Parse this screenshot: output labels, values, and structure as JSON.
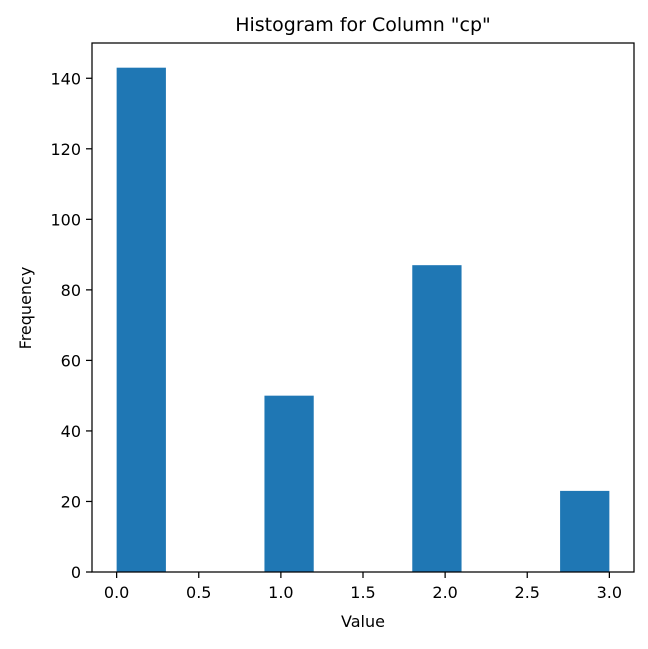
{
  "chart_data": {
    "type": "bar",
    "title": "Histogram for Column \"cp\"",
    "xlabel": "Value",
    "ylabel": "Frequency",
    "bins": [
      {
        "x0": 0.0,
        "x1": 0.3,
        "value": 143
      },
      {
        "x0": 0.3,
        "x1": 0.6,
        "value": 0
      },
      {
        "x0": 0.6,
        "x1": 0.9,
        "value": 0
      },
      {
        "x0": 0.9,
        "x1": 1.2,
        "value": 50
      },
      {
        "x0": 1.2,
        "x1": 1.5,
        "value": 0
      },
      {
        "x0": 1.5,
        "x1": 1.8,
        "value": 0
      },
      {
        "x0": 1.8,
        "x1": 2.1,
        "value": 87
      },
      {
        "x0": 2.1,
        "x1": 2.4,
        "value": 0
      },
      {
        "x0": 2.4,
        "x1": 2.7,
        "value": 0
      },
      {
        "x0": 2.7,
        "x1": 3.0,
        "value": 23
      }
    ],
    "xlim": [
      -0.15,
      3.15
    ],
    "ylim": [
      0,
      150
    ],
    "xticks": [
      "0.0",
      "0.5",
      "1.0",
      "1.5",
      "2.0",
      "2.5",
      "3.0"
    ],
    "xtick_values": [
      0.0,
      0.5,
      1.0,
      1.5,
      2.0,
      2.5,
      3.0
    ],
    "yticks": [
      "0",
      "20",
      "40",
      "60",
      "80",
      "100",
      "120",
      "140"
    ],
    "ytick_values": [
      0,
      20,
      40,
      60,
      80,
      100,
      120,
      140
    ],
    "bar_color": "#1f77b4",
    "axis_color": "#000000",
    "grid": false,
    "legend": "none"
  }
}
